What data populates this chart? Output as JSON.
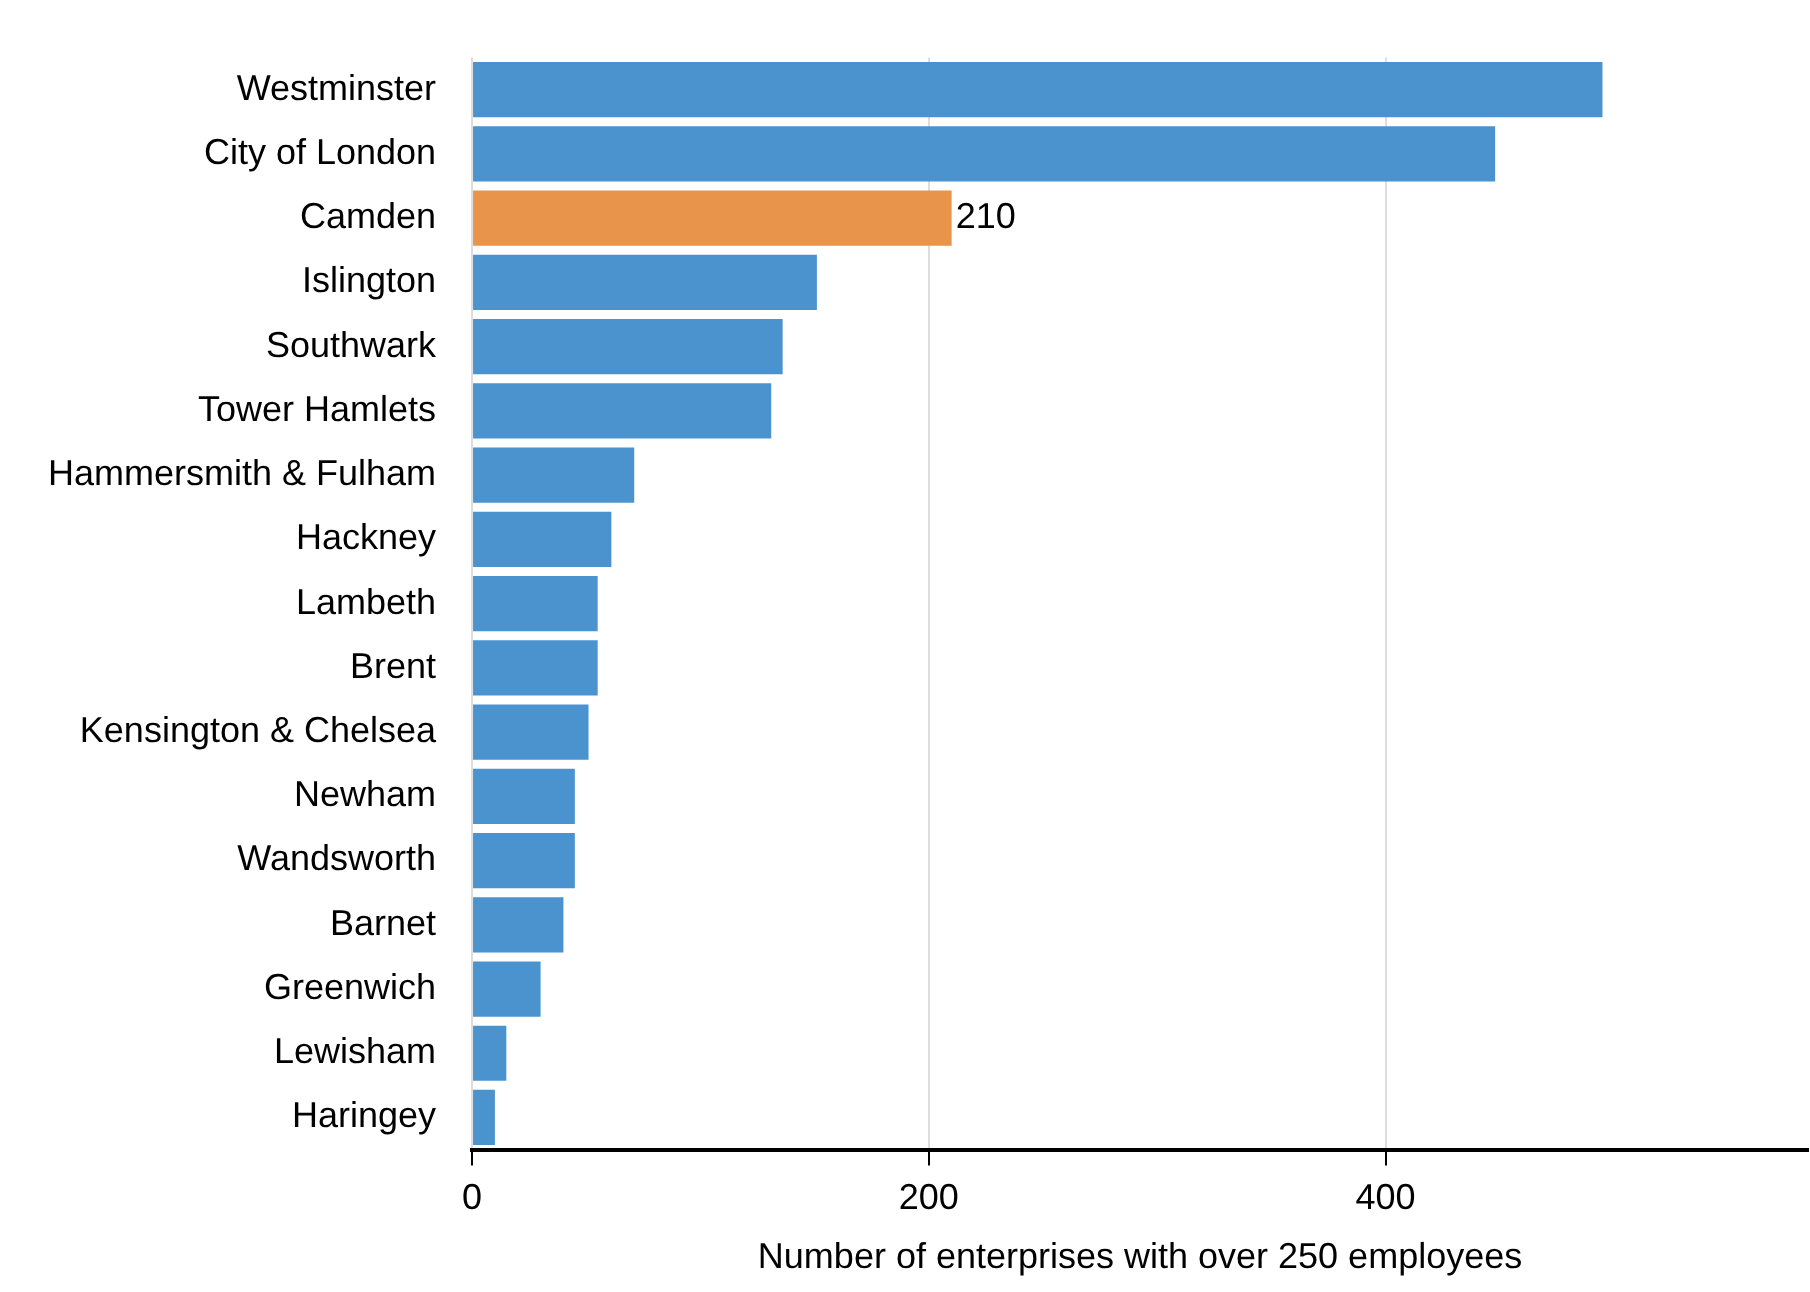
{
  "chart_data": {
    "type": "bar",
    "orientation": "horizontal",
    "categories": [
      "Westminster",
      "City of London",
      "Camden",
      "Islington",
      "Southwark",
      "Tower Hamlets",
      "Hammersmith & Fulham",
      "Hackney",
      "Lambeth",
      "Brent",
      "Kensington & Chelsea",
      "Newham",
      "Wandsworth",
      "Barnet",
      "Greenwich",
      "Lewisham",
      "Haringey"
    ],
    "values": [
      495,
      448,
      210,
      151,
      136,
      131,
      71,
      61,
      55,
      55,
      51,
      45,
      45,
      40,
      30,
      15,
      10
    ],
    "colors": [
      "#4a93ce",
      "#4a93ce",
      "#e8944a",
      "#4a93ce",
      "#4a93ce",
      "#4a93ce",
      "#4a93ce",
      "#4a93ce",
      "#4a93ce",
      "#4a93ce",
      "#4a93ce",
      "#4a93ce",
      "#4a93ce",
      "#4a93ce",
      "#4a93ce",
      "#4a93ce",
      "#4a93ce"
    ],
    "value_labels": [
      null,
      null,
      "210",
      null,
      null,
      null,
      null,
      null,
      null,
      null,
      null,
      null,
      null,
      null,
      null,
      null,
      null
    ],
    "xlabel": "Number of enterprises with over 250 employees",
    "xlim": [
      0,
      585
    ],
    "xticks": [
      0,
      200,
      400
    ],
    "grid": "x",
    "legend": false
  }
}
